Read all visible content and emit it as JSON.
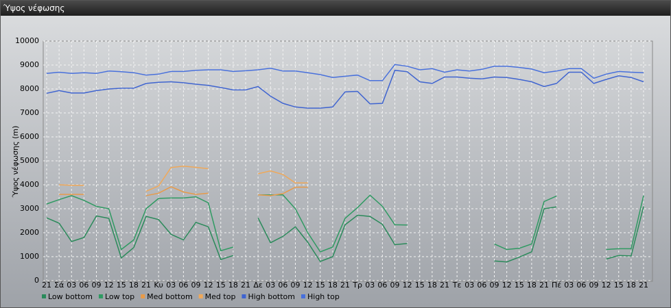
{
  "window_title": "Ύψος νέφωσης",
  "chart_data": {
    "type": "line",
    "y_label": "Ύψος νέφωσης (m)",
    "categories": [
      "21",
      "Σά",
      "03",
      "06",
      "09",
      "12",
      "15",
      "18",
      "21",
      "Κυ",
      "03",
      "06",
      "09",
      "12",
      "15",
      "18",
      "21",
      "Δε",
      "03",
      "06",
      "09",
      "12",
      "15",
      "18",
      "21",
      "Τρ",
      "03",
      "06",
      "09",
      "12",
      "15",
      "18",
      "21",
      "Τε",
      "03",
      "06",
      "09",
      "12",
      "15",
      "18",
      "21",
      "Πέ",
      "03",
      "06",
      "09",
      "12",
      "15",
      "18",
      "21"
    ],
    "ylim": [
      0,
      10000
    ],
    "yticks": [
      0,
      1000,
      2000,
      3000,
      4000,
      5000,
      6000,
      7000,
      8000,
      9000,
      10000
    ],
    "grid": true,
    "legend": "bottom-left",
    "series": [
      {
        "name": "Low bottom",
        "color": "#2a8a5a",
        "values": [
          2620,
          2400,
          1630,
          1800,
          2700,
          2600,
          950,
          1380,
          2680,
          2550,
          1930,
          1700,
          2430,
          2250,
          880,
          1050,
          null,
          2620,
          1580,
          1850,
          2250,
          1600,
          800,
          1000,
          2330,
          2730,
          2680,
          2350,
          1500,
          1550,
          null,
          null,
          null,
          null,
          null,
          null,
          820,
          780,
          980,
          1200,
          3000,
          3080,
          null,
          null,
          null,
          900,
          1050,
          1030,
          3100
        ]
      },
      {
        "name": "Low top",
        "color": "#2f9a62",
        "values": [
          3200,
          3380,
          3550,
          3350,
          3100,
          3000,
          1300,
          1700,
          3000,
          3430,
          3450,
          3450,
          3500,
          3250,
          1250,
          1400,
          null,
          3580,
          3580,
          3580,
          3000,
          2000,
          1200,
          1400,
          2600,
          3050,
          3570,
          3100,
          2330,
          2320,
          null,
          null,
          null,
          null,
          null,
          null,
          1530,
          1300,
          1350,
          1530,
          3300,
          3530,
          null,
          null,
          null,
          1300,
          1330,
          1330,
          3550
        ]
      },
      {
        "name": "Med bottom",
        "color": "#e89a48",
        "values": [
          null,
          3600,
          3600,
          3600,
          null,
          null,
          null,
          null,
          3550,
          3650,
          3920,
          3700,
          3600,
          3650,
          null,
          null,
          null,
          3580,
          3550,
          3630,
          3900,
          3900,
          null,
          null,
          null,
          null,
          null,
          null,
          null,
          null,
          null,
          null,
          null,
          null,
          null,
          null,
          null,
          null,
          null,
          null,
          null,
          null,
          null,
          null,
          null,
          null,
          null,
          null,
          null
        ]
      },
      {
        "name": "Med top",
        "color": "#f0a858",
        "values": [
          null,
          4000,
          3980,
          3980,
          null,
          null,
          null,
          null,
          3730,
          3950,
          4720,
          4780,
          4730,
          4670,
          null,
          null,
          null,
          4460,
          4580,
          4430,
          4080,
          4080,
          null,
          null,
          null,
          null,
          null,
          null,
          null,
          null,
          null,
          null,
          null,
          null,
          null,
          null,
          null,
          null,
          null,
          null,
          null,
          null,
          null,
          null,
          null,
          null,
          null,
          null,
          null
        ]
      },
      {
        "name": "High bottom",
        "color": "#3f64d0",
        "values": [
          7820,
          7930,
          7830,
          7830,
          7930,
          8000,
          8030,
          8030,
          8230,
          8280,
          8300,
          8260,
          8200,
          8150,
          8060,
          7960,
          7960,
          8100,
          7700,
          7400,
          7250,
          7200,
          7200,
          7250,
          7880,
          7900,
          7380,
          7400,
          8780,
          8720,
          8300,
          8230,
          8500,
          8500,
          8450,
          8420,
          8500,
          8480,
          8400,
          8300,
          8100,
          8230,
          8700,
          8700,
          8230,
          8400,
          8550,
          8480,
          8300
        ]
      },
      {
        "name": "High top",
        "color": "#4870dc",
        "values": [
          8650,
          8700,
          8650,
          8680,
          8650,
          8750,
          8720,
          8680,
          8580,
          8620,
          8730,
          8730,
          8780,
          8800,
          8800,
          8730,
          8760,
          8800,
          8870,
          8750,
          8750,
          8680,
          8600,
          8480,
          8530,
          8580,
          8350,
          8350,
          9020,
          8950,
          8800,
          8850,
          8700,
          8800,
          8750,
          8820,
          8950,
          8950,
          8900,
          8830,
          8680,
          8750,
          8850,
          8850,
          8450,
          8620,
          8730,
          8700,
          8680
        ]
      }
    ]
  }
}
